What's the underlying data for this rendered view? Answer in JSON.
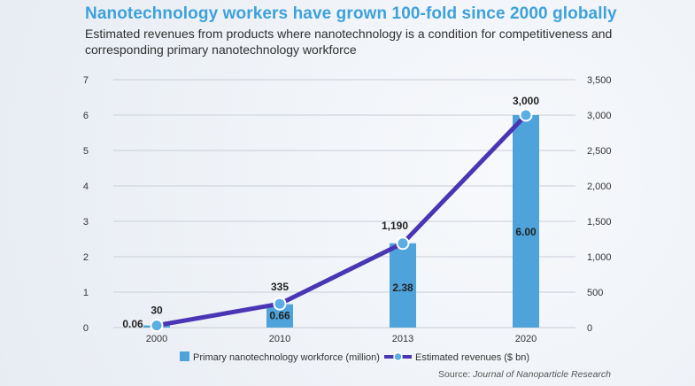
{
  "title": "Nanotechnology workers have grown 100-fold since 2000 globally",
  "subtitle": "Estimated revenues from products where nanotechnology is a condition for competitiveness and corresponding primary nanotechnology workforce",
  "source": {
    "prefix": "Source: ",
    "journal": "Journal of Nanoparticle Research"
  },
  "colors": {
    "title": "#3ea1db",
    "bar": "#4ea3db",
    "line": "#4a35b5",
    "marker": "#5aaee3",
    "grid": "#c9ced6"
  },
  "chart_data": {
    "type": "bar",
    "categories": [
      "2000",
      "2010",
      "2013",
      "2020"
    ],
    "ylim_left": [
      0,
      7
    ],
    "yticks_left": [
      0,
      1,
      2,
      3,
      4,
      5,
      6,
      7
    ],
    "ylim_right": [
      0,
      3500
    ],
    "yticks_right": [
      "0",
      "500",
      "1,000",
      "1,500",
      "2,000",
      "2,500",
      "3,000",
      "3,500"
    ],
    "grid": true,
    "legend_position": "bottom",
    "series": [
      {
        "name": "Primary nanotechnology workforce (million)",
        "type": "bar",
        "axis": "left",
        "values": [
          0.06,
          0.66,
          2.38,
          6.0
        ],
        "labels": [
          "0.06",
          "0.66",
          "2.38",
          "6.00"
        ]
      },
      {
        "name": "Estimated revenues ($ bn)",
        "type": "line",
        "axis": "right",
        "values": [
          30,
          335,
          1190,
          3000
        ],
        "labels": [
          "30",
          "335",
          "1,190",
          "3,000"
        ]
      }
    ]
  }
}
